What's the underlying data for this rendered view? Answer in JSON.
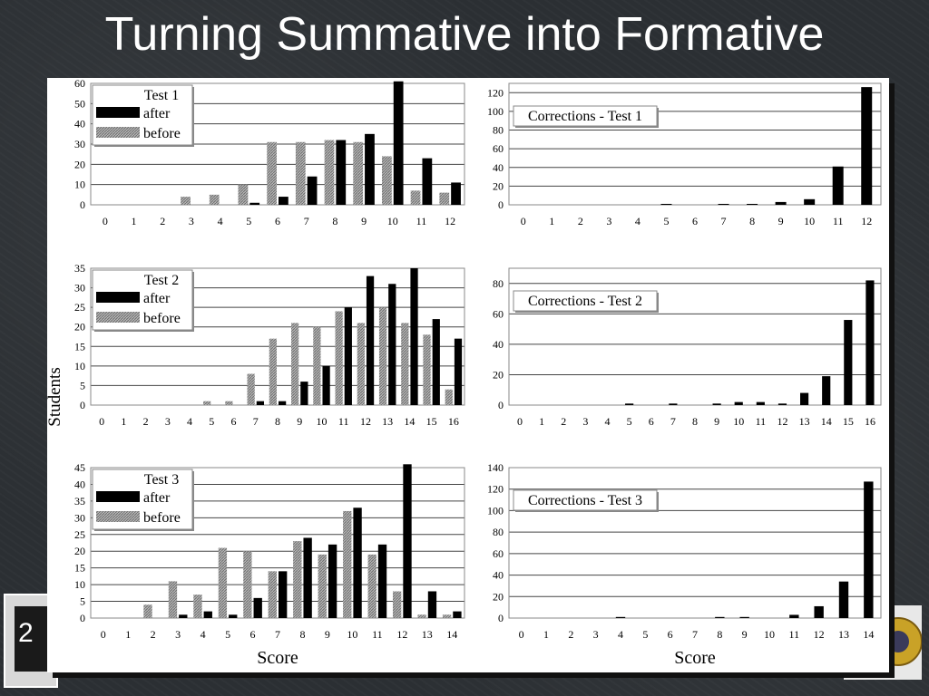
{
  "slide": {
    "title": "Turning Summative into Formative",
    "slide_number": "2"
  },
  "y_axis_label": "Students",
  "chart_data": [
    {
      "type": "bar",
      "title": "Test 1",
      "categories": [
        "0",
        "1",
        "2",
        "3",
        "4",
        "5",
        "6",
        "7",
        "8",
        "9",
        "10",
        "11",
        "12"
      ],
      "ylim": [
        0,
        60
      ],
      "yticks": [
        0,
        10,
        20,
        30,
        40,
        50,
        60
      ],
      "legend_position": "top-left",
      "series": [
        {
          "name": "after",
          "color": "#000000",
          "values": [
            0,
            0,
            0,
            0,
            0,
            1,
            4,
            14,
            32,
            35,
            61,
            23,
            11
          ]
        },
        {
          "name": "before",
          "color": "#9a9a9a",
          "values": [
            0,
            0,
            0,
            4,
            5,
            10,
            31,
            31,
            32,
            31,
            24,
            7,
            6
          ]
        }
      ]
    },
    {
      "type": "bar",
      "title": "Corrections - Test 1",
      "categories": [
        "0",
        "1",
        "2",
        "3",
        "4",
        "5",
        "6",
        "7",
        "8",
        "9",
        "10",
        "11",
        "12"
      ],
      "ylim": [
        0,
        130
      ],
      "yticks": [
        0,
        20,
        40,
        60,
        80,
        100,
        120
      ],
      "legend_position": "top-left",
      "series": [
        {
          "color": "#000000",
          "values": [
            0,
            0,
            0,
            0,
            0,
            1,
            0,
            1,
            1,
            3,
            6,
            41,
            126
          ]
        }
      ]
    },
    {
      "type": "bar",
      "title": "Test 2",
      "categories": [
        "0",
        "1",
        "2",
        "3",
        "4",
        "5",
        "6",
        "7",
        "8",
        "9",
        "10",
        "11",
        "12",
        "13",
        "14",
        "15",
        "16"
      ],
      "ylim": [
        0,
        35
      ],
      "yticks": [
        0,
        5,
        10,
        15,
        20,
        25,
        30,
        35
      ],
      "legend_position": "top-left",
      "series": [
        {
          "name": "after",
          "color": "#000000",
          "values": [
            0,
            0,
            0,
            0,
            0,
            0,
            0,
            1,
            1,
            6,
            10,
            25,
            33,
            31,
            35,
            22,
            17
          ]
        },
        {
          "name": "before",
          "color": "#9a9a9a",
          "values": [
            0,
            0,
            0,
            0,
            0,
            1,
            1,
            8,
            17,
            21,
            20,
            24,
            21,
            25,
            21,
            18,
            4
          ]
        }
      ]
    },
    {
      "type": "bar",
      "title": "Corrections - Test 2",
      "categories": [
        "0",
        "1",
        "2",
        "3",
        "4",
        "5",
        "6",
        "7",
        "8",
        "9",
        "10",
        "11",
        "12",
        "13",
        "14",
        "15",
        "16"
      ],
      "ylim": [
        0,
        90
      ],
      "yticks": [
        0,
        20,
        40,
        60,
        80
      ],
      "legend_position": "top-left",
      "series": [
        {
          "color": "#000000",
          "values": [
            0,
            0,
            0,
            0,
            0,
            1,
            0,
            1,
            0,
            1,
            2,
            2,
            1,
            8,
            19,
            56,
            82
          ]
        }
      ]
    },
    {
      "type": "bar",
      "title": "Test 3",
      "xlabel": "Score",
      "categories": [
        "0",
        "1",
        "2",
        "3",
        "4",
        "5",
        "6",
        "7",
        "8",
        "9",
        "10",
        "11",
        "12",
        "13",
        "14"
      ],
      "ylim": [
        0,
        45
      ],
      "yticks": [
        0,
        5,
        10,
        15,
        20,
        25,
        30,
        35,
        40,
        45
      ],
      "legend_position": "top-left",
      "series": [
        {
          "name": "after",
          "color": "#000000",
          "values": [
            0,
            0,
            0,
            1,
            2,
            1,
            6,
            14,
            24,
            22,
            33,
            22,
            46,
            8,
            2
          ]
        },
        {
          "name": "before",
          "color": "#9a9a9a",
          "values": [
            0,
            0,
            4,
            11,
            7,
            21,
            20,
            14,
            23,
            19,
            32,
            19,
            8,
            1,
            1
          ]
        }
      ]
    },
    {
      "type": "bar",
      "title": "Corrections - Test 3",
      "xlabel": "Score",
      "categories": [
        "0",
        "1",
        "2",
        "3",
        "4",
        "5",
        "6",
        "7",
        "8",
        "9",
        "10",
        "11",
        "12",
        "13",
        "14"
      ],
      "ylim": [
        0,
        140
      ],
      "yticks": [
        0,
        20,
        40,
        60,
        80,
        100,
        120,
        140
      ],
      "legend_position": "top-left",
      "series": [
        {
          "color": "#000000",
          "values": [
            0,
            0,
            0,
            0,
            1,
            0,
            0,
            0,
            1,
            1,
            0,
            3,
            11,
            34,
            127
          ]
        }
      ]
    }
  ]
}
